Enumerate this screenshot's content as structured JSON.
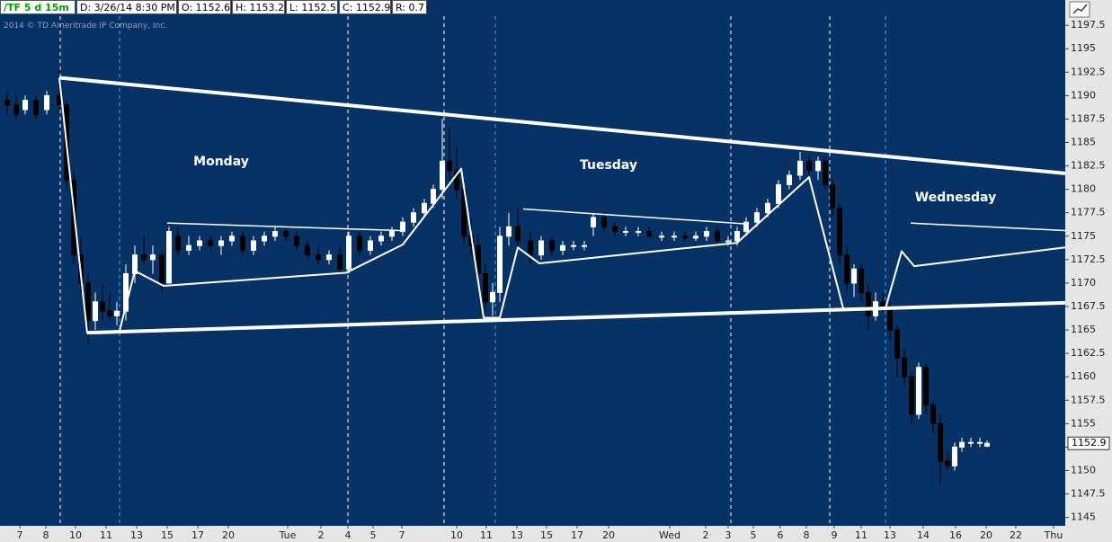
{
  "header": {
    "symbol": "/TF 5 d 15m",
    "date": "D: 3/26/14 8:30 PM",
    "open": "O: 1152.6",
    "high": "H: 1153.2",
    "low": "L: 1152.5",
    "close": "C: 1152.9",
    "range": "R: 0.7"
  },
  "copyright": "2014 © TD Ameritrade IP Company, Inc.",
  "chart_data": {
    "type": "candlestick",
    "annotations": [
      "Monday",
      "Tuesday",
      "Wednesday"
    ],
    "up_color": "#ffffff",
    "down_color": "#000000",
    "background": "#073266",
    "xlim": [
      0,
      118.5
    ],
    "xticks": [
      {
        "value": 2.2,
        "label": "7"
      },
      {
        "value": 5.1,
        "label": "8"
      },
      {
        "value": 8.4,
        "label": "10"
      },
      {
        "value": 11.8,
        "label": "11"
      },
      {
        "value": 15.2,
        "label": "13"
      },
      {
        "value": 18.6,
        "label": "15"
      },
      {
        "value": 22.0,
        "label": "17"
      },
      {
        "value": 25.4,
        "label": "20"
      },
      {
        "value": 32.0,
        "label": "Tue"
      },
      {
        "value": 35.7,
        "label": "2"
      },
      {
        "value": 38.7,
        "label": "4"
      },
      {
        "value": 41.5,
        "label": "5"
      },
      {
        "value": 44.7,
        "label": "7"
      },
      {
        "value": 50.8,
        "label": "10"
      },
      {
        "value": 54.1,
        "label": "11"
      },
      {
        "value": 57.5,
        "label": "13"
      },
      {
        "value": 60.8,
        "label": "15"
      },
      {
        "value": 64.2,
        "label": "17"
      },
      {
        "value": 67.7,
        "label": "20"
      },
      {
        "value": 74.5,
        "label": "Wed"
      },
      {
        "value": 78.5,
        "label": "2"
      },
      {
        "value": 81.0,
        "label": "3"
      },
      {
        "value": 83.8,
        "label": "5"
      },
      {
        "value": 86.8,
        "label": "6"
      },
      {
        "value": 89.7,
        "label": "8"
      },
      {
        "value": 92.8,
        "label": "9"
      },
      {
        "value": 95.8,
        "label": "11"
      },
      {
        "value": 99.0,
        "label": "13"
      },
      {
        "value": 102.7,
        "label": "14"
      },
      {
        "value": 106.3,
        "label": "16"
      },
      {
        "value": 109.7,
        "label": "20"
      },
      {
        "value": 113.0,
        "label": "22"
      },
      {
        "value": 117.2,
        "label": "Thu"
      }
    ],
    "ylim": [
      1144.1,
      1200.2
    ],
    "yticks": [
      1145,
      1147.5,
      1150,
      1152.5,
      1155,
      1157.5,
      1160,
      1162.5,
      1165,
      1167.5,
      1170,
      1172.5,
      1175,
      1177.5,
      1180,
      1182.5,
      1185,
      1187.5,
      1190,
      1192.5,
      1195,
      1197.5
    ],
    "last_price": 1152.9,
    "session_breaks": {
      "x": [
        6.7,
        13.3,
        38.7,
        49.4,
        55.1,
        81.3,
        92.3,
        98.5
      ],
      "colors": [
        "#ffffff",
        "#33aaff",
        "#ffffff",
        "#ffffff",
        "#33aaff",
        "#ffffff",
        "#ffffff",
        "#33aaff"
      ]
    },
    "candles": {
      "x": [
        0.8,
        1.8,
        2.8,
        4.0,
        5.2,
        6.6,
        7.4,
        8.2,
        9.0,
        9.8,
        10.6,
        11.4,
        12.2,
        13.0,
        14.0,
        15.0,
        16.0,
        17.0,
        18.0,
        18.8,
        19.8,
        21.0,
        22.2,
        23.4,
        24.6,
        25.8,
        27.0,
        28.2,
        29.4,
        30.6,
        31.8,
        33.0,
        34.2,
        35.4,
        36.6,
        37.8,
        38.8,
        40.0,
        41.2,
        42.4,
        43.6,
        44.8,
        46.0,
        47.2,
        48.2,
        49.2,
        50.0,
        50.8,
        51.6,
        52.4,
        53.2,
        54.0,
        54.8,
        55.6,
        56.6,
        57.6,
        59.0,
        60.2,
        61.4,
        62.6,
        63.8,
        65.0,
        66.0,
        67.2,
        68.4,
        69.6,
        71.0,
        72.2,
        73.6,
        75.0,
        76.2,
        77.4,
        78.6,
        79.8,
        81.0,
        82.0,
        83.0,
        84.2,
        85.4,
        86.6,
        87.8,
        89.0,
        90.0,
        91.0,
        91.8,
        92.6,
        93.4,
        94.2,
        95.0,
        95.8,
        96.6,
        97.4,
        98.2,
        99.0,
        99.8,
        100.6,
        101.4,
        102.2,
        103.0,
        103.8,
        104.6,
        105.4,
        106.2,
        107.0,
        108.0,
        109.0,
        109.8
      ],
      "open": [
        1189.5,
        1189,
        1188.5,
        1189.5,
        1188.5,
        1190,
        1189,
        1181,
        1173,
        1170,
        1166,
        1168,
        1167,
        1166.5,
        1167,
        1171,
        1173,
        1172.5,
        1173,
        1170,
        1175,
        1173.5,
        1174,
        1174.5,
        1174,
        1174.5,
        1175,
        1173.5,
        1174.5,
        1175,
        1175.5,
        1175,
        1174,
        1173,
        1172.5,
        1173,
        1171.5,
        1175,
        1173.5,
        1174.5,
        1175,
        1175.5,
        1176.5,
        1177.5,
        1178.5,
        1180,
        1183,
        1182,
        1180,
        1175,
        1174,
        1171,
        1168,
        1169,
        1175,
        1176,
        1174.5,
        1173,
        1174.5,
        1173.5,
        1174,
        1174,
        1176,
        1177,
        1176,
        1175.5,
        1175.5,
        1175.5,
        1175,
        1175,
        1175,
        1174.8,
        1175,
        1175.5,
        1174.5,
        1174.5,
        1175.5,
        1176.5,
        1177.5,
        1178.5,
        1180.5,
        1181.5,
        1183,
        1182,
        1183,
        1180.5,
        1178,
        1173,
        1170,
        1171.5,
        1169,
        1166.5,
        1168,
        1167.5,
        1165,
        1162,
        1160,
        1156,
        1161,
        1157,
        1155,
        1151,
        1150.5,
        1152.5,
        1153,
        1153,
        1152.6
      ],
      "high": [
        1190.5,
        1190,
        1190,
        1190,
        1190.5,
        1193,
        1189.5,
        1182,
        1175,
        1171,
        1169,
        1170,
        1169,
        1168,
        1172,
        1174,
        1175,
        1174,
        1173.5,
        1176,
        1176,
        1175,
        1175,
        1175,
        1175,
        1175.5,
        1175.5,
        1175,
        1175.5,
        1176,
        1176,
        1175.5,
        1174.5,
        1174,
        1173.5,
        1174,
        1175.5,
        1175.5,
        1175,
        1175.5,
        1176,
        1177,
        1178,
        1179,
        1180.5,
        1187.5,
        1186.5,
        1184.5,
        1181,
        1177,
        1175,
        1172,
        1170,
        1176,
        1177.5,
        1178,
        1175.5,
        1175,
        1175,
        1174.5,
        1174.5,
        1174.5,
        1177.5,
        1177.5,
        1176.5,
        1176,
        1176,
        1176,
        1175.5,
        1175.5,
        1175.5,
        1175.5,
        1176,
        1176,
        1175,
        1176,
        1177,
        1178,
        1179,
        1181,
        1182,
        1184,
        1183.5,
        1183.5,
        1183.5,
        1181,
        1178.5,
        1174,
        1172,
        1172,
        1170,
        1169,
        1169,
        1168,
        1165.5,
        1163,
        1160.5,
        1161.5,
        1161.5,
        1157.5,
        1156,
        1152,
        1153,
        1153.5,
        1153.5,
        1153.5,
        1153.2
      ],
      "low": [
        1188,
        1187.5,
        1188,
        1187.5,
        1188,
        1188,
        1180,
        1172,
        1169,
        1163.5,
        1165,
        1166,
        1166,
        1165.5,
        1166,
        1170,
        1172,
        1171,
        1169,
        1170,
        1173,
        1173,
        1173.5,
        1173.5,
        1173,
        1174,
        1173,
        1173,
        1174,
        1174.5,
        1174.5,
        1173.5,
        1172.5,
        1172,
        1172,
        1171,
        1171,
        1173,
        1173,
        1174,
        1174.5,
        1175,
        1176,
        1177,
        1178,
        1179,
        1181,
        1179,
        1174,
        1173,
        1170,
        1167,
        1166.5,
        1168,
        1174,
        1174,
        1172,
        1172.5,
        1173,
        1173,
        1173.5,
        1173.5,
        1175,
        1175.5,
        1175,
        1175,
        1175,
        1175,
        1174.5,
        1174.5,
        1174.5,
        1174.5,
        1174.5,
        1174,
        1174,
        1174,
        1175,
        1176,
        1177,
        1178,
        1180,
        1181,
        1181.5,
        1181,
        1180,
        1177,
        1172,
        1169,
        1168.5,
        1168,
        1165,
        1166,
        1167,
        1164,
        1160,
        1159,
        1155,
        1155.5,
        1156,
        1154,
        1148.5,
        1150,
        1150,
        1152,
        1152.5,
        1152.5,
        1152.5
      ],
      "close": [
        1189,
        1188,
        1189.5,
        1188,
        1190,
        1189,
        1181,
        1173,
        1170,
        1166,
        1168,
        1167,
        1166.5,
        1167,
        1171,
        1173,
        1172.5,
        1173,
        1170,
        1175.5,
        1173.5,
        1174,
        1174.5,
        1174,
        1174.5,
        1175,
        1173.5,
        1174.5,
        1175,
        1175.5,
        1175,
        1174,
        1173,
        1172.5,
        1173,
        1171.5,
        1175,
        1173.5,
        1174.5,
        1175,
        1175.5,
        1176.5,
        1177.5,
        1178.5,
        1180,
        1183,
        1182,
        1180,
        1175,
        1174,
        1171,
        1168,
        1169,
        1175,
        1176,
        1174.5,
        1173,
        1174.5,
        1173.5,
        1174,
        1174,
        1174,
        1177,
        1176,
        1175.5,
        1175.5,
        1175.5,
        1175,
        1175,
        1175,
        1174.8,
        1175,
        1175.5,
        1174.5,
        1174.5,
        1175.5,
        1176.5,
        1177.5,
        1178.5,
        1180.5,
        1181.5,
        1183,
        1182,
        1183,
        1180.5,
        1178,
        1173,
        1170,
        1171.5,
        1169,
        1166.5,
        1168,
        1167.5,
        1165,
        1162,
        1160,
        1156,
        1161,
        1157,
        1155,
        1151,
        1150.5,
        1152.5,
        1153,
        1153,
        1153,
        1152.9
      ]
    },
    "drawings": [
      {
        "x": [
          6.6,
          118.5
        ],
        "y": [
          1191.9,
          1181.7
        ],
        "width": 4
      },
      {
        "x": [
          9.7,
          118.5
        ],
        "y": [
          1164.7,
          1167.9
        ],
        "width": 4
      },
      {
        "x": [
          6.6,
          9.7,
          13.3,
          15.0,
          18.2,
          38.5,
          44.8,
          51.3,
          53.8,
          55.6,
          57.6,
          60.0,
          82.0,
          90.0,
          93.8
        ],
        "y": [
          1191.9,
          1164.7,
          1164.9,
          1171.3,
          1169.7,
          1171.1,
          1174.1,
          1182.2,
          1166.3,
          1166.3,
          1173.8,
          1172.1,
          1174.3,
          1181.3,
          1167.3
        ],
        "width": 2
      },
      {
        "x": [
          98.5,
          100.3,
          101.7,
          118.5
        ],
        "y": [
          1167.3,
          1173.4,
          1171.8,
          1173.8
        ],
        "width": 2
      },
      {
        "x": [
          18.6,
          44.6
        ],
        "y": [
          1176.4,
          1175.6
        ],
        "width": 1.5
      },
      {
        "x": [
          58.2,
          83.2
        ],
        "y": [
          1177.9,
          1176.3
        ],
        "width": 1.5
      },
      {
        "x": [
          101.3,
          118.5
        ],
        "y": [
          1176.4,
          1175.6
        ],
        "width": 1.5
      }
    ]
  }
}
